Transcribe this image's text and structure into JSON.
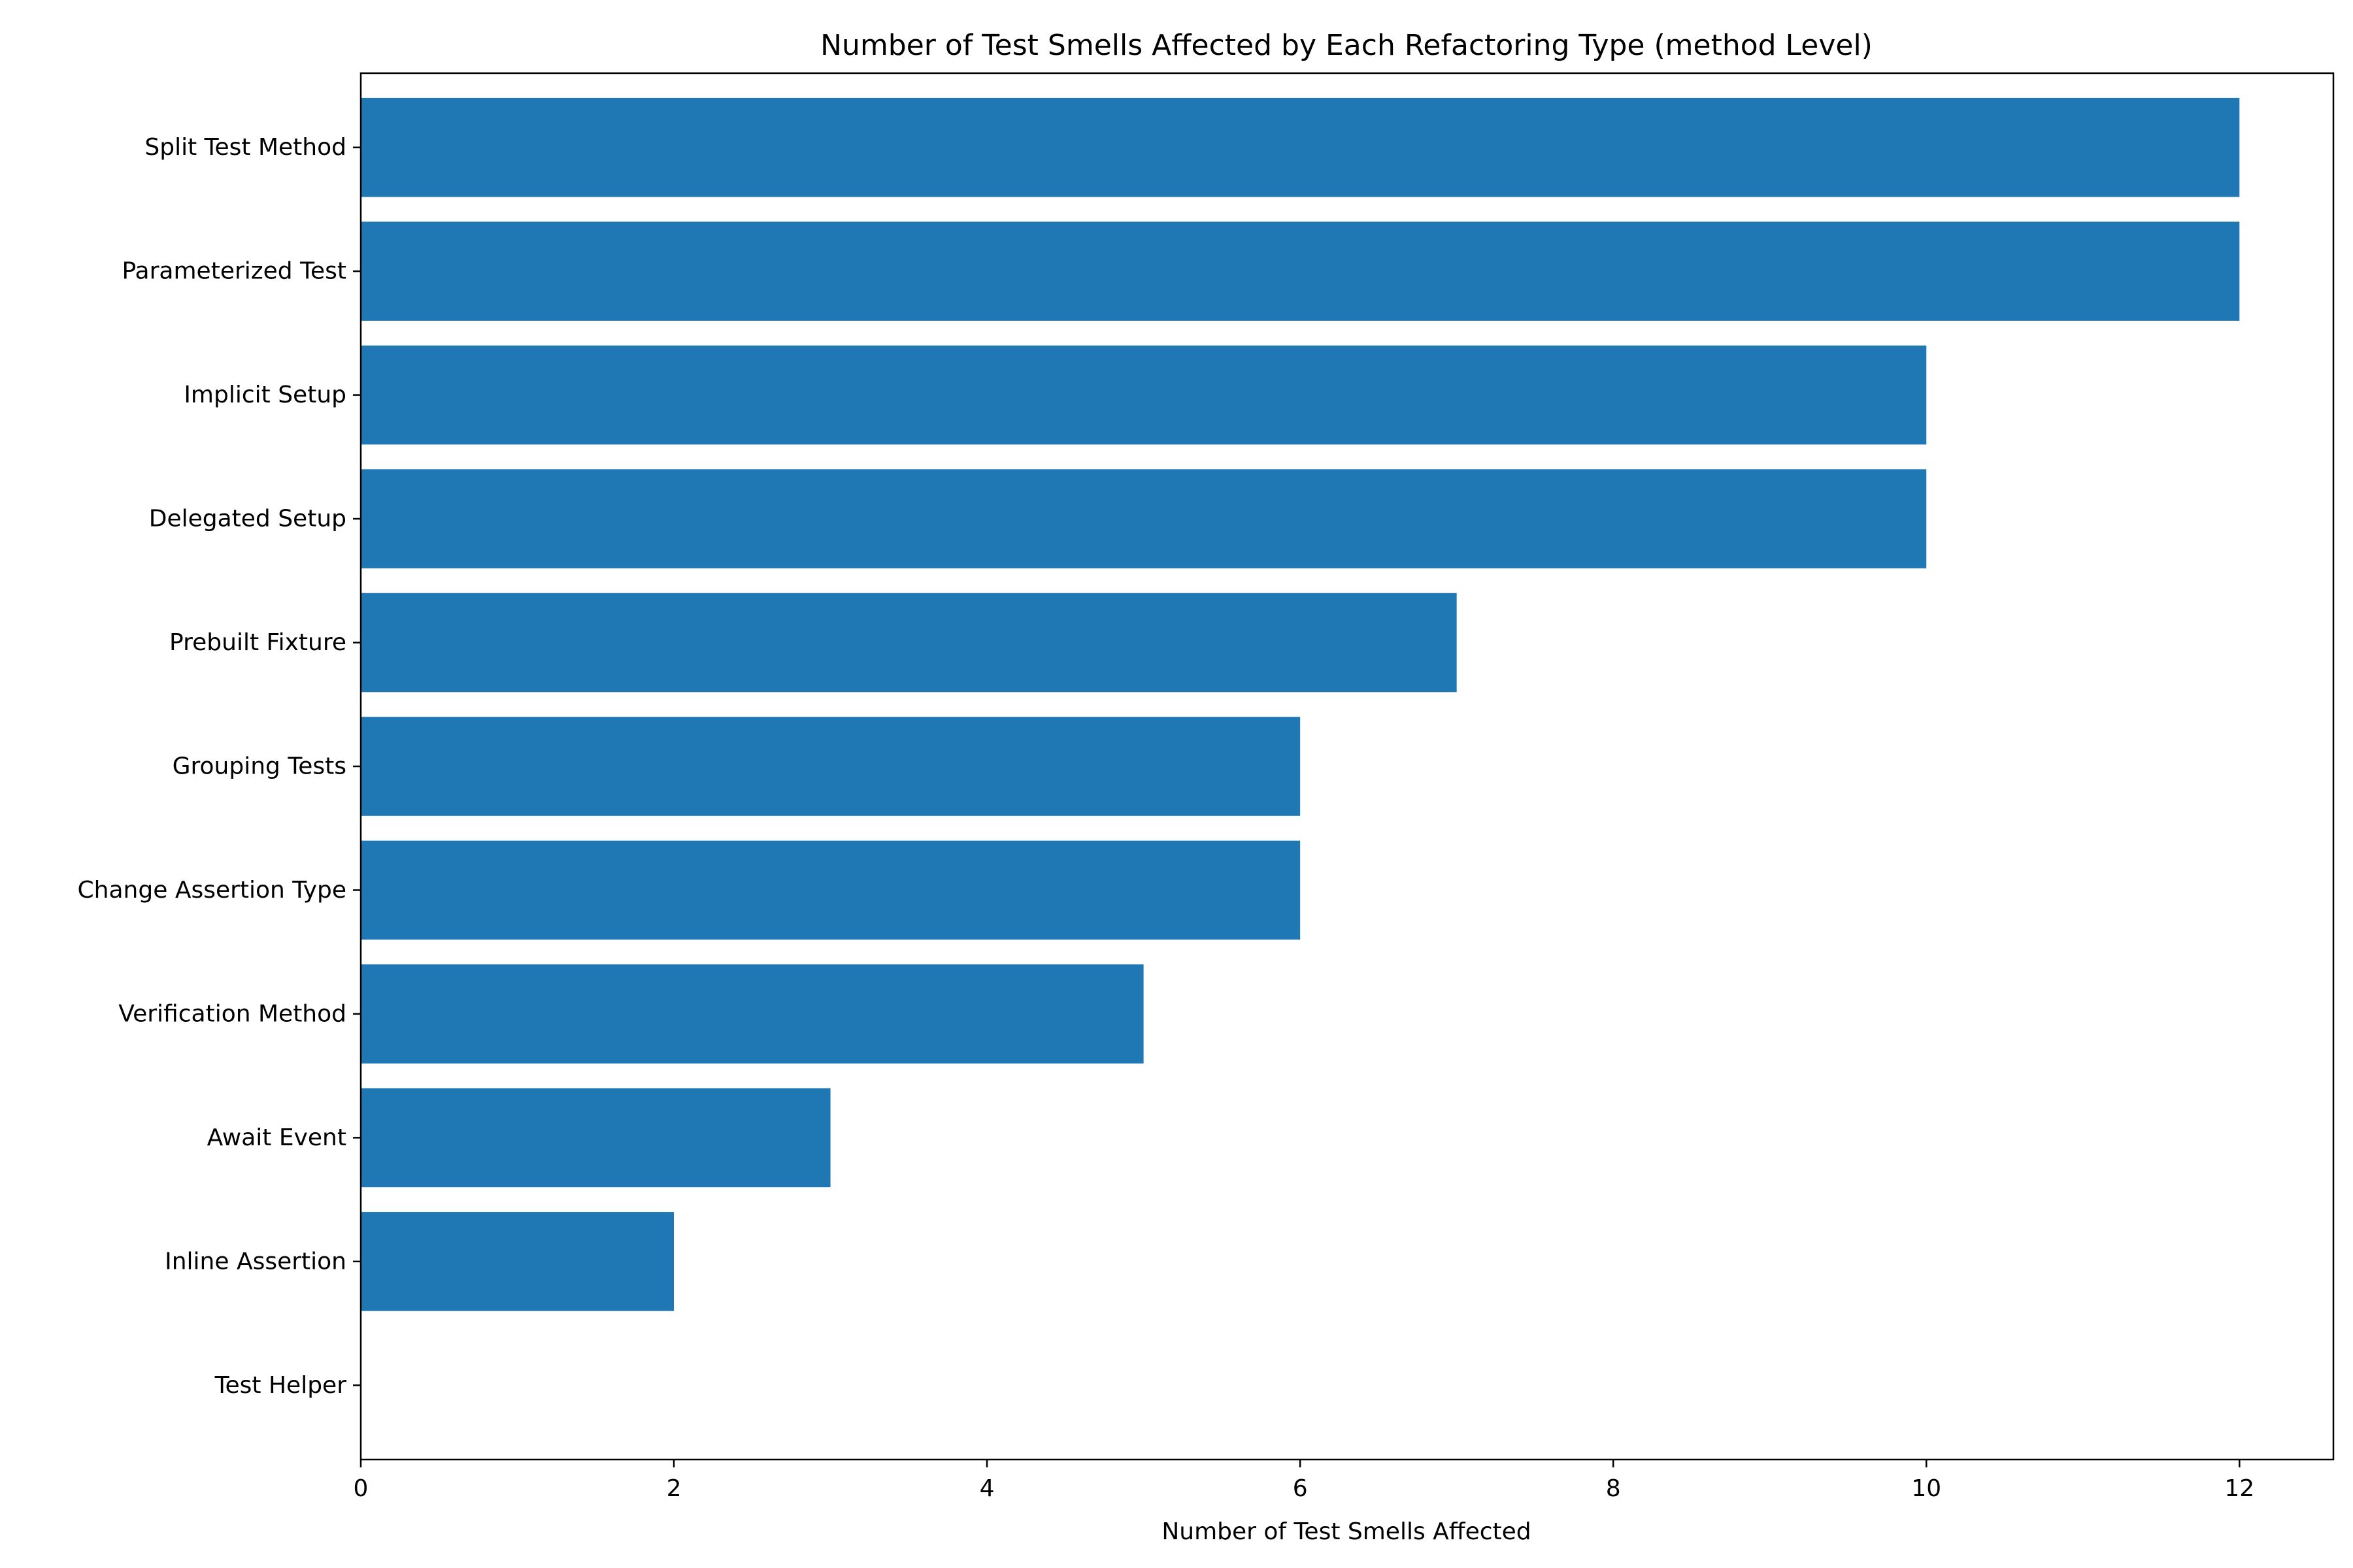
{
  "chart_data": {
    "type": "bar",
    "orientation": "horizontal",
    "title": "Number of Test Smells Affected by Each Refactoring Type (method Level)",
    "xlabel": "Number of Test Smells Affected",
    "ylabel": "",
    "categories": [
      "Split Test Method",
      "Parameterized Test",
      "Implicit Setup",
      "Delegated Setup",
      "Prebuilt Fixture",
      "Grouping Tests",
      "Change Assertion Type",
      "Verification Method",
      "Await Event",
      "Inline Assertion",
      "Test Helper"
    ],
    "values": [
      12,
      12,
      10,
      10,
      7,
      6,
      6,
      5,
      3,
      2,
      0
    ],
    "xlim": [
      0,
      12.6
    ],
    "xticks": [
      0,
      2,
      4,
      6,
      8,
      10,
      12
    ],
    "grid": false,
    "legend": "none",
    "bar_color": "#1f77b4"
  }
}
